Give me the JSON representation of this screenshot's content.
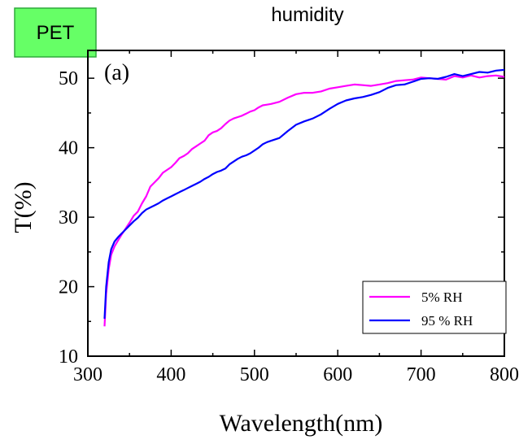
{
  "badge": "PET",
  "top_title": "humidity",
  "chart_data": {
    "type": "line",
    "panel_label": "(a)",
    "xlabel": "Wavelength(nm)",
    "ylabel": "T(%)",
    "xlim": [
      300,
      800
    ],
    "ylim": [
      10,
      54
    ],
    "xticks": [
      300,
      400,
      500,
      600,
      700,
      800
    ],
    "yticks": [
      10,
      20,
      30,
      40,
      50
    ],
    "legend_position": "bottom-right",
    "series": [
      {
        "name": "5% RH",
        "color": "#ff00ff",
        "x": [
          320,
          322,
          325,
          328,
          332,
          336,
          340,
          345,
          350,
          355,
          360,
          365,
          370,
          375,
          380,
          385,
          390,
          395,
          400,
          405,
          410,
          415,
          420,
          425,
          430,
          435,
          440,
          445,
          450,
          455,
          460,
          465,
          470,
          475,
          480,
          485,
          490,
          495,
          500,
          505,
          510,
          515,
          520,
          530,
          540,
          550,
          560,
          570,
          580,
          590,
          600,
          610,
          620,
          630,
          640,
          650,
          660,
          670,
          680,
          690,
          700,
          710,
          720,
          730,
          740,
          750,
          760,
          770,
          780,
          790,
          800
        ],
        "y": [
          14.3,
          19,
          22.5,
          24.6,
          25.8,
          26.6,
          27.4,
          28.3,
          29.2,
          30.2,
          30.8,
          32,
          33,
          34.4,
          35,
          35.6,
          36.4,
          36.8,
          37.2,
          37.8,
          38.5,
          38.8,
          39.2,
          39.8,
          40.2,
          40.6,
          41,
          41.8,
          42.2,
          42.4,
          42.8,
          43.4,
          43.9,
          44.2,
          44.4,
          44.6,
          44.9,
          45.2,
          45.4,
          45.8,
          46.1,
          46.2,
          46.3,
          46.6,
          47.2,
          47.7,
          47.9,
          47.9,
          48.1,
          48.5,
          48.7,
          48.9,
          49.1,
          49,
          48.9,
          49.1,
          49.3,
          49.6,
          49.7,
          49.8,
          50.1,
          50,
          49.9,
          49.8,
          50.3,
          50.1,
          50.4,
          50.1,
          50.3,
          50.4,
          50.2
        ]
      },
      {
        "name": "95 % RH",
        "color": "#0000ff",
        "x": [
          320,
          322,
          325,
          328,
          332,
          336,
          340,
          345,
          350,
          355,
          360,
          365,
          370,
          375,
          380,
          385,
          390,
          395,
          400,
          405,
          410,
          415,
          420,
          425,
          430,
          435,
          440,
          445,
          450,
          455,
          460,
          465,
          470,
          475,
          480,
          485,
          490,
          495,
          500,
          505,
          510,
          515,
          520,
          530,
          540,
          550,
          560,
          570,
          580,
          590,
          600,
          610,
          620,
          630,
          640,
          650,
          660,
          670,
          680,
          690,
          700,
          710,
          720,
          730,
          740,
          750,
          760,
          770,
          780,
          790,
          800
        ],
        "y": [
          15.4,
          20,
          23.5,
          25.4,
          26.5,
          27.1,
          27.6,
          28.2,
          28.8,
          29.4,
          29.9,
          30.6,
          31.1,
          31.4,
          31.7,
          32,
          32.4,
          32.7,
          33,
          33.3,
          33.6,
          33.9,
          34.2,
          34.5,
          34.8,
          35.1,
          35.5,
          35.8,
          36.2,
          36.5,
          36.7,
          37,
          37.6,
          38,
          38.4,
          38.7,
          38.9,
          39.2,
          39.6,
          40,
          40.5,
          40.8,
          41,
          41.4,
          42.4,
          43.3,
          43.8,
          44.2,
          44.8,
          45.6,
          46.3,
          46.8,
          47.1,
          47.3,
          47.6,
          48,
          48.6,
          49,
          49.1,
          49.5,
          49.9,
          50,
          49.9,
          50.2,
          50.6,
          50.3,
          50.6,
          50.9,
          50.8,
          51.1,
          51.2
        ]
      }
    ]
  }
}
